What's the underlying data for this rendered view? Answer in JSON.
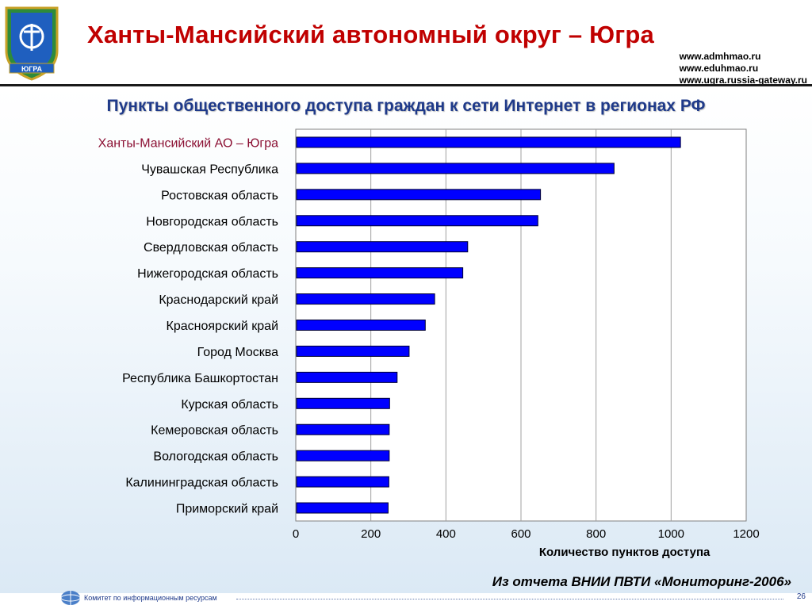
{
  "header": {
    "title": "Ханты-Мансийский автономный округ – Югра",
    "links": [
      "www.admhmao.ru",
      "www.eduhmao.ru",
      "www.ugra.russia-gateway.ru"
    ],
    "emblem_text": "ЮГРА"
  },
  "slide": {
    "title": "Пункты общественного доступа граждан к сети Интернет в регионах РФ",
    "source_note": "Из отчета ВНИИ ПВТИ «Мониторинг-2006»"
  },
  "footer": {
    "text": "Комитет по информационным ресурсам",
    "page_number": "26"
  },
  "colors": {
    "bar_fill": "#0000ff",
    "title_red": "#c00000",
    "highlight_label": "#8b1033",
    "slide_title_blue": "#1f3a8a"
  },
  "chart_data": {
    "type": "bar",
    "orientation": "horizontal",
    "categories": [
      "Ханты-Мансийский АО – Югра",
      "Чувашская Республика",
      "Ростовская область",
      "Новгородская область",
      "Свердловская область",
      "Нижегородская область",
      "Краснодарский край",
      "Красноярский край",
      "Город Москва",
      "Республика Башкортостан",
      "Курская область",
      "Кемеровская область",
      "Вологодская область",
      "Калининградская область",
      "Приморский край"
    ],
    "values": [
      1025,
      848,
      652,
      645,
      458,
      445,
      370,
      345,
      302,
      270,
      250,
      249,
      249,
      248,
      246
    ],
    "highlight_index": 0,
    "xlabel": "Количество пунктов доступа",
    "ylabel": "",
    "xlim": [
      0,
      1200
    ],
    "xticks": [
      0,
      200,
      400,
      600,
      800,
      1000,
      1200
    ],
    "grid": "vertical"
  }
}
